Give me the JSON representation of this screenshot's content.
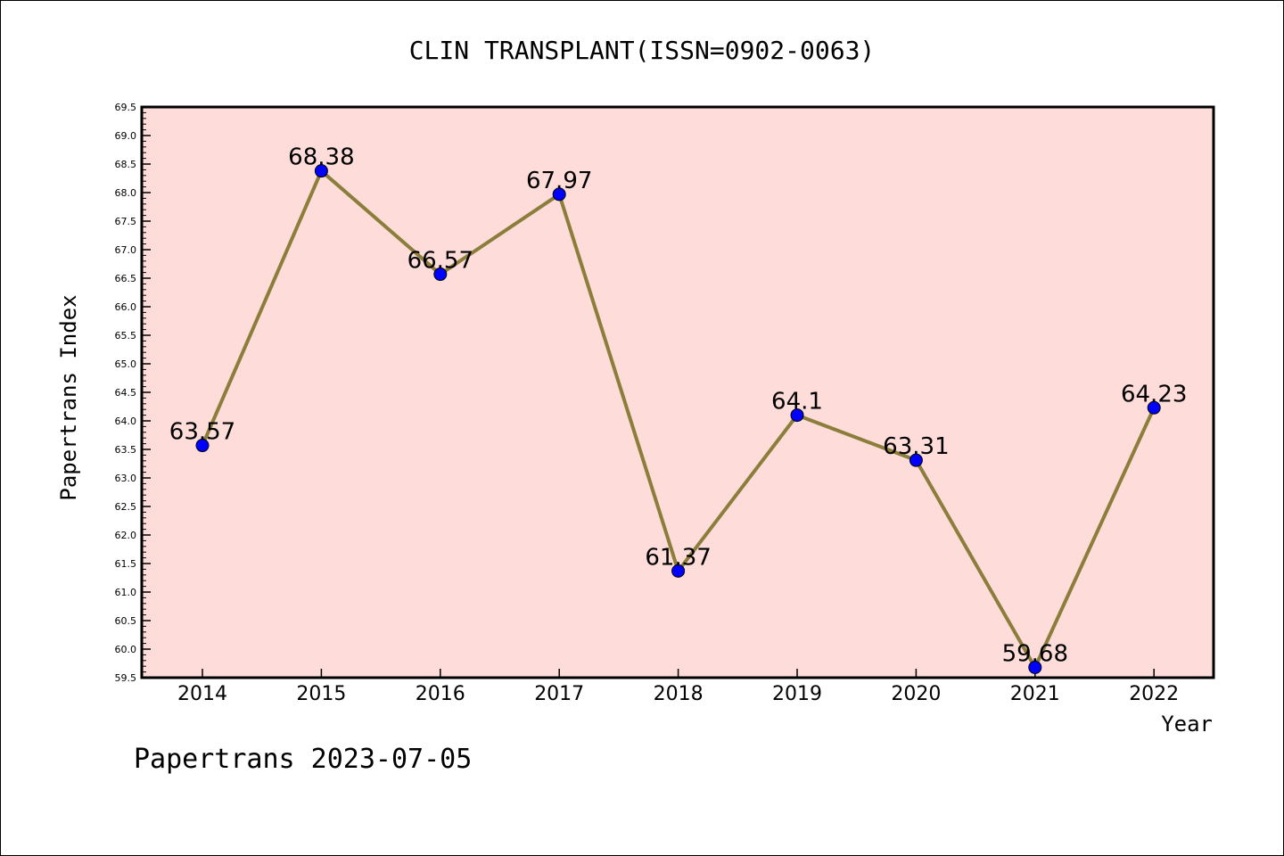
{
  "chart_data": {
    "type": "line",
    "title": "CLIN TRANSPLANT(ISSN=0902-0063)",
    "xlabel": "Year",
    "ylabel": "Papertrans Index",
    "categories": [
      "2014",
      "2015",
      "2016",
      "2017",
      "2018",
      "2019",
      "2020",
      "2021",
      "2022"
    ],
    "series": [
      {
        "values": [
          63.57,
          68.38,
          66.57,
          67.97,
          61.37,
          64.1,
          63.31,
          59.68,
          64.23
        ],
        "labels": [
          "63.57",
          "68.38",
          "66.57",
          "67.97",
          "61.37",
          "64.1",
          "63.31",
          "59.68",
          "64.23"
        ]
      }
    ],
    "ylim": [
      59.5,
      69.5
    ],
    "ytick_step": 0.5,
    "grid": false,
    "legend": "none",
    "colors": {
      "plot_background": "#fddcda",
      "line": "#8b7d3a",
      "marker": "#0000ff",
      "axis": "#000000"
    }
  },
  "footer": {
    "text": "Papertrans 2023-07-05"
  }
}
